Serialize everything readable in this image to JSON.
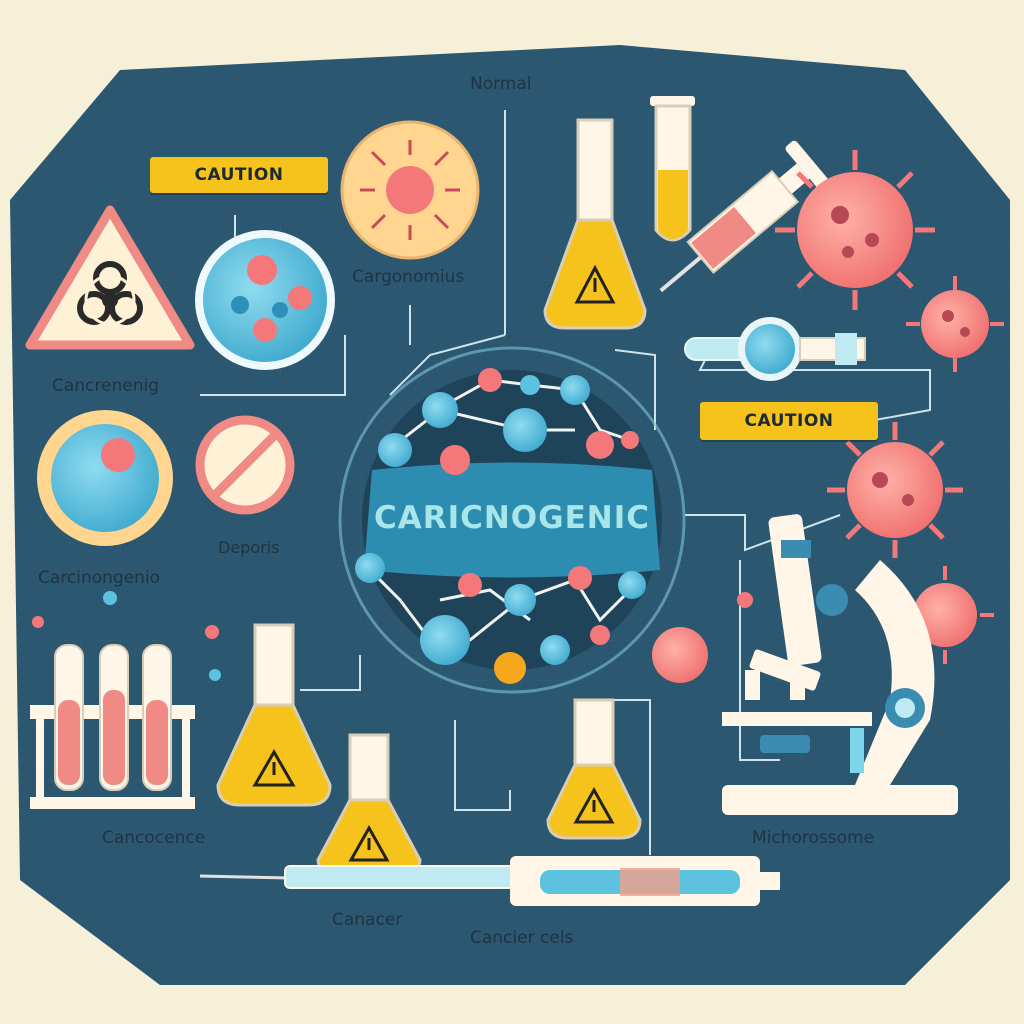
{
  "title": "CARICNOGENIC",
  "labels": {
    "normal": "Normal",
    "caution_top": "CAUTION",
    "caution_right": "CAUTION",
    "cargonomius": "Cargonomius",
    "cancrenenig": "Cancrenenig",
    "deporis": "Deporis",
    "carcinongenio": "Carcinongenio",
    "cancocence": "Cancocence",
    "canacer": "Canacer",
    "cancier_cels": "Cancier cels",
    "michorossome": "Michorossome"
  },
  "colors": {
    "background": "#f7f0d8",
    "panel": "#2b5770",
    "accent_yellow": "#f6c21c",
    "cell_blue": "#5cc2e0",
    "cell_red": "#f4787a"
  },
  "icons": [
    "biohazard-icon",
    "warning-icon",
    "no-entry-icon",
    "virus-icon",
    "microscope-icon",
    "flask-icon",
    "test-tube-icon",
    "syringe-icon"
  ]
}
